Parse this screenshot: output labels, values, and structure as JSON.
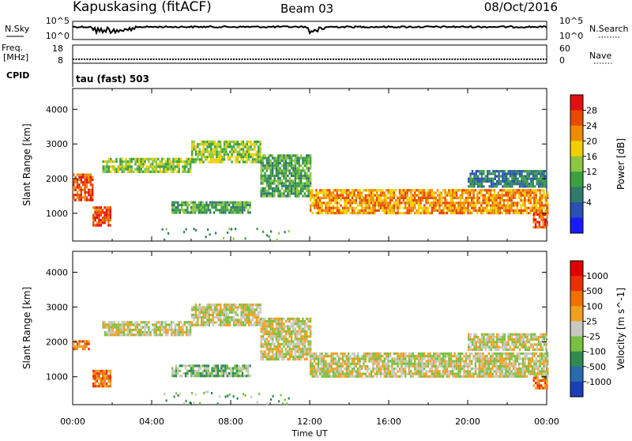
{
  "header": {
    "station": "Kapuskasing (fitACF)",
    "beam": "Beam 03",
    "date": "08/Oct/2016"
  },
  "strips": {
    "nsky_label": "N.Sky",
    "nsearch_label": "N.Search",
    "nsky_ticks": [
      "10^5",
      "10^0"
    ],
    "freq_label": "Freq.",
    "freq_unit": "[MHz]",
    "freq_ticks": [
      "18",
      "8"
    ],
    "nave_label": "Nave",
    "nave_ticks": [
      "60",
      "0"
    ],
    "cpid_label": "CPID",
    "cpid_value": "tau (fast) 503"
  },
  "xaxis": {
    "label": "Time UT",
    "ticks": [
      "00:00",
      "04:00",
      "08:00",
      "12:00",
      "16:00",
      "20:00",
      "00:00"
    ]
  },
  "chart_data": [
    {
      "type": "heatmap",
      "name": "power",
      "xlabel": "Time UT",
      "ylabel": "Slant Range [km]",
      "xlim": [
        0,
        24
      ],
      "ylim": [
        200,
        4600
      ],
      "yticks": [
        1000,
        2000,
        3000,
        4000
      ],
      "colorbar_label": "Power [dB]",
      "colorbar_ticks": [
        "28",
        "24",
        "20",
        "16",
        "12",
        "8",
        "4"
      ],
      "colors": [
        "#1a1aff",
        "#2a4fb5",
        "#2f7a6a",
        "#3aa040",
        "#8dc63f",
        "#f0d000",
        "#f08a00",
        "#e84a00",
        "#e01010"
      ],
      "regions": [
        {
          "t": [
            0.0,
            1.0
          ],
          "r": [
            1350,
            2150
          ],
          "level": 7
        },
        {
          "t": [
            1.0,
            1.9
          ],
          "r": [
            650,
            1200
          ],
          "level": 7
        },
        {
          "t": [
            1.5,
            6.0
          ],
          "r": [
            2200,
            2600
          ],
          "level": 4
        },
        {
          "t": [
            6.0,
            9.5
          ],
          "r": [
            2500,
            3100
          ],
          "level": 4
        },
        {
          "t": [
            9.5,
            12.0
          ],
          "r": [
            1500,
            2700
          ],
          "level": 3
        },
        {
          "t": [
            5.0,
            9.0
          ],
          "r": [
            1000,
            1350
          ],
          "level": 3
        },
        {
          "t": [
            12.0,
            24.0
          ],
          "r": [
            1000,
            1700
          ],
          "level": 6
        },
        {
          "t": [
            20.0,
            24.0
          ],
          "r": [
            1800,
            2250
          ],
          "level": 2
        },
        {
          "t": [
            23.3,
            24.0
          ],
          "r": [
            600,
            1000
          ],
          "level": 7
        }
      ]
    },
    {
      "type": "heatmap",
      "name": "velocity",
      "xlabel": "Time UT",
      "ylabel": "Slant Range [km]",
      "xlim": [
        0,
        24
      ],
      "ylim": [
        200,
        4600
      ],
      "yticks": [
        1000,
        2000,
        3000,
        4000
      ],
      "colorbar_label": "Velocity [m s^-1]",
      "colorbar_ticks": [
        "1000",
        "500",
        "100",
        "25",
        "-25",
        "-100",
        "-500",
        "-1000"
      ],
      "colors": [
        "#1a3fb5",
        "#2a6ab0",
        "#2f8a50",
        "#7ac040",
        "#c8c8c0",
        "#f0a020",
        "#f07000",
        "#e83000",
        "#e00000"
      ],
      "regions": [
        {
          "t": [
            0.0,
            0.8
          ],
          "r": [
            1800,
            2050
          ],
          "level": 6
        },
        {
          "t": [
            1.0,
            1.9
          ],
          "r": [
            700,
            1200
          ],
          "level": 6
        },
        {
          "t": [
            1.5,
            6.0
          ],
          "r": [
            2200,
            2600
          ],
          "level": 4
        },
        {
          "t": [
            6.0,
            9.5
          ],
          "r": [
            2500,
            3100
          ],
          "level": 4
        },
        {
          "t": [
            9.5,
            12.0
          ],
          "r": [
            1500,
            2700
          ],
          "level": 4
        },
        {
          "t": [
            5.0,
            9.0
          ],
          "r": [
            1000,
            1350
          ],
          "level": 3
        },
        {
          "t": [
            12.0,
            24.0
          ],
          "r": [
            1000,
            1700
          ],
          "level": 4
        },
        {
          "t": [
            20.0,
            24.0
          ],
          "r": [
            1800,
            2250
          ],
          "level": 4
        },
        {
          "t": [
            23.3,
            24.0
          ],
          "r": [
            700,
            1000
          ],
          "level": 6
        }
      ]
    }
  ]
}
